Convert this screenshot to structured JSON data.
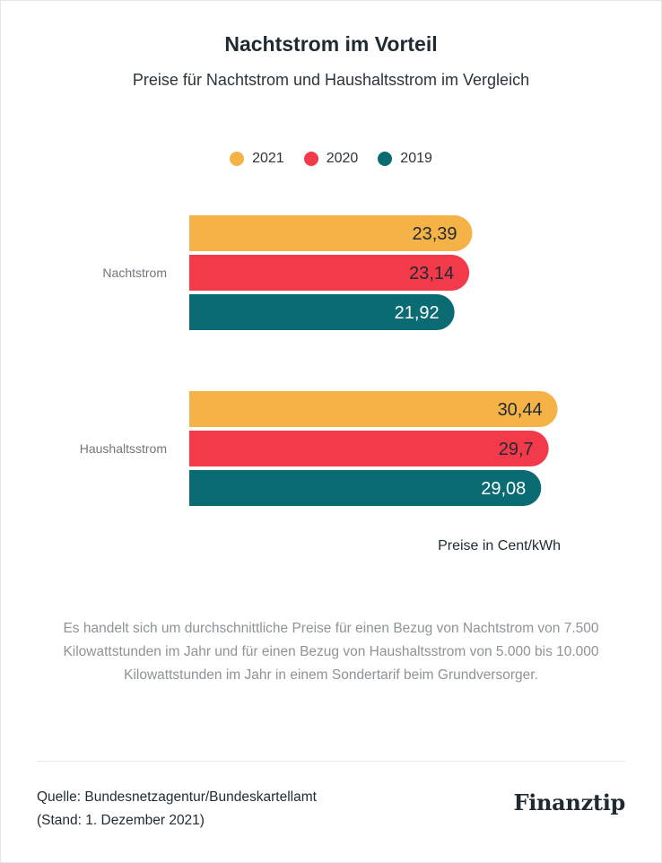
{
  "title": "Nachtstrom im Vorteil",
  "subtitle": "Preise für Nachtstrom und Haushaltsstrom im Vergleich",
  "legend": [
    {
      "label": "2021",
      "color": "#f5b347"
    },
    {
      "label": "2020",
      "color": "#f23a4a"
    },
    {
      "label": "2019",
      "color": "#0b6b73"
    }
  ],
  "chart_data": {
    "type": "bar",
    "orientation": "horizontal",
    "categories": [
      "Nachtstrom",
      "Haushaltsstrom"
    ],
    "series": [
      {
        "name": "2021",
        "color": "#f5b347",
        "values": [
          23.39,
          30.44
        ],
        "labels": [
          "23,39",
          "30,44"
        ],
        "label_color": "#1f2a33"
      },
      {
        "name": "2020",
        "color": "#f23a4a",
        "values": [
          23.14,
          29.7
        ],
        "labels": [
          "23,14",
          "29,7"
        ],
        "label_color": "#1f2a33"
      },
      {
        "name": "2019",
        "color": "#0b6b73",
        "values": [
          21.92,
          29.08
        ],
        "labels": [
          "21,92",
          "29,08"
        ],
        "label_color": "#ffffff"
      }
    ],
    "unit_label": "Preise in Cent/kWh",
    "xlim": [
      0,
      31.5
    ],
    "grid": false,
    "legend_position": "top"
  },
  "footnote": "Es handelt sich um durchschnittliche Preise für einen Bezug von Nachtstrom von 7.500 Kilowattstunden im Jahr und für einen Bezug von Haushaltsstrom von 5.000 bis 10.000 Kilowattstunden im Jahr in einem Sondertarif beim Grundversorger.",
  "source_line1": "Quelle: Bundesnetzagentur/Bundeskartellamt",
  "source_line2": "(Stand: 1. Dezember 2021)",
  "logo_text": "Finanztip"
}
